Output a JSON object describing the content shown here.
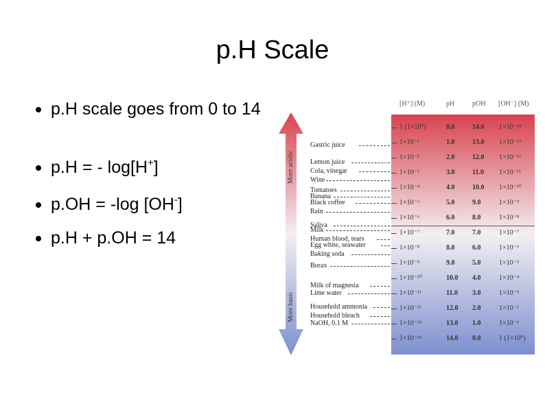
{
  "title": "p.H Scale",
  "bullets": {
    "b1": "p.H scale goes from 0 to 14",
    "b2_pre": "p.H = - log[H",
    "b2_sup": "+",
    "b2_post": "]",
    "b3_pre": "p.OH = -log [OH",
    "b3_sup": "-",
    "b3_post": "]",
    "b4": "p.H + p.OH = 14"
  },
  "figure": {
    "headers": {
      "h": "[H⁺] (M)",
      "ph": "pH",
      "poh": "pOH",
      "oh": "[OH⁻] (M)"
    },
    "acid_label": "More acidic",
    "basic_label": "More basic",
    "colors": {
      "acid": "#d9434f",
      "neutral": "#f3eff3",
      "basic": "#7d8fcf"
    },
    "rows": [
      {
        "h": "1 (1×10⁰)",
        "ph": "0.0",
        "poh": "14.0",
        "oh": "1×10⁻¹⁴"
      },
      {
        "h": "1×10⁻¹",
        "ph": "1.0",
        "poh": "13.0",
        "oh": "1×10⁻¹³"
      },
      {
        "h": "1×10⁻²",
        "ph": "2.0",
        "poh": "12.0",
        "oh": "1×10⁻¹²"
      },
      {
        "h": "1×10⁻³",
        "ph": "3.0",
        "poh": "11.0",
        "oh": "1×10⁻¹¹"
      },
      {
        "h": "1×10⁻⁴",
        "ph": "4.0",
        "poh": "10.0",
        "oh": "1×10⁻¹⁰"
      },
      {
        "h": "1×10⁻⁵",
        "ph": "5.0",
        "poh": "9.0",
        "oh": "1×10⁻⁹"
      },
      {
        "h": "1×10⁻⁶",
        "ph": "6.0",
        "poh": "8.0",
        "oh": "1×10⁻⁸"
      },
      {
        "h": "1×10⁻⁷",
        "ph": "7.0",
        "poh": "7.0",
        "oh": "1×10⁻⁷"
      },
      {
        "h": "1×10⁻⁸",
        "ph": "8.0",
        "poh": "6.0",
        "oh": "1×10⁻⁶"
      },
      {
        "h": "1×10⁻⁹",
        "ph": "9.0",
        "poh": "5.0",
        "oh": "1×10⁻⁵"
      },
      {
        "h": "1×10⁻¹⁰",
        "ph": "10.0",
        "poh": "4.0",
        "oh": "1×10⁻⁴"
      },
      {
        "h": "1×10⁻¹¹",
        "ph": "11.0",
        "poh": "3.0",
        "oh": "1×10⁻³"
      },
      {
        "h": "1×10⁻¹²",
        "ph": "12.0",
        "poh": "2.0",
        "oh": "1×10⁻²"
      },
      {
        "h": "1×10⁻¹³",
        "ph": "13.0",
        "poh": "1.0",
        "oh": "1×10⁻¹"
      },
      {
        "h": "1×10⁻¹⁴",
        "ph": "14.0",
        "poh": "0.0",
        "oh": "1 (1×10⁰)"
      }
    ],
    "substances": [
      {
        "name": "Gastric juice",
        "ph": 1.2
      },
      {
        "name": "Lemon juice",
        "ph": 2.3
      },
      {
        "name": "Cola, vinegar",
        "ph": 2.9
      },
      {
        "name": "Wine",
        "ph": 3.5
      },
      {
        "name": "Tomatoes",
        "ph": 4.2
      },
      {
        "name": "Banana",
        "ph": 4.6
      },
      {
        "name": "Black coffee",
        "ph": 5.0
      },
      {
        "name": "Rain",
        "ph": 5.6
      },
      {
        "name": "Saliva",
        "ph": 6.5
      },
      {
        "name": "Milk",
        "ph": 6.8
      },
      {
        "name": "Human blood, tears",
        "ph": 7.4
      },
      {
        "name": "Egg white, seawater",
        "ph": 7.8
      },
      {
        "name": "Baking soda",
        "ph": 8.4
      },
      {
        "name": "Borax",
        "ph": 9.2
      },
      {
        "name": "Milk of magnesia",
        "ph": 10.5
      },
      {
        "name": "Lime water",
        "ph": 11.0
      },
      {
        "name": "Household ammonia",
        "ph": 11.9
      },
      {
        "name": "Household bleach",
        "ph": 12.5
      },
      {
        "name": "NaOH, 0.1 M",
        "ph": 13.0
      }
    ]
  }
}
